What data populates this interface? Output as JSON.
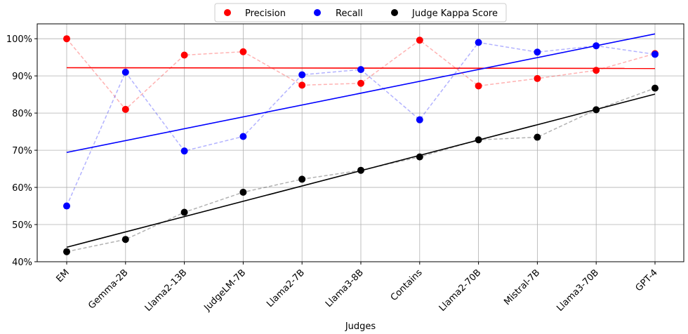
{
  "chart_data": {
    "type": "scatter",
    "xlabel": "Judges",
    "ylabel": "",
    "categories": [
      "EM",
      "Gemma-2B",
      "Llama2-13B",
      "JudgeLM-7B",
      "Llama2-7B",
      "Llama3-8B",
      "Contains",
      "Llama2-70B",
      "Mistral-7B",
      "Llama3-70B",
      "GPT-4"
    ],
    "ylim": [
      0.4,
      1.04
    ],
    "yticks": [
      0.4,
      0.5,
      0.6,
      0.7,
      0.8,
      0.9,
      1.0
    ],
    "ytick_labels": [
      "40%",
      "50%",
      "60%",
      "70%",
      "80%",
      "90%",
      "100%"
    ],
    "grid": true,
    "legend_position": "top-center",
    "series": [
      {
        "name": "Precision",
        "color": "#ff0000",
        "values": [
          1.0,
          0.81,
          0.956,
          0.965,
          0.875,
          0.88,
          0.996,
          0.873,
          0.893,
          0.915,
          0.96
        ],
        "trend": [
          0.922,
          0.92
        ]
      },
      {
        "name": "Recall",
        "color": "#0000ff",
        "values": [
          0.55,
          0.91,
          0.698,
          0.737,
          0.903,
          0.917,
          0.782,
          0.99,
          0.964,
          0.981,
          0.958
        ],
        "trend": [
          0.694,
          1.013
        ]
      },
      {
        "name": "Judge Kappa Score",
        "color": "#000000",
        "values": [
          0.427,
          0.46,
          0.533,
          0.587,
          0.622,
          0.646,
          0.682,
          0.728,
          0.735,
          0.809,
          0.867
        ],
        "trend": [
          0.439,
          0.851
        ]
      }
    ]
  }
}
